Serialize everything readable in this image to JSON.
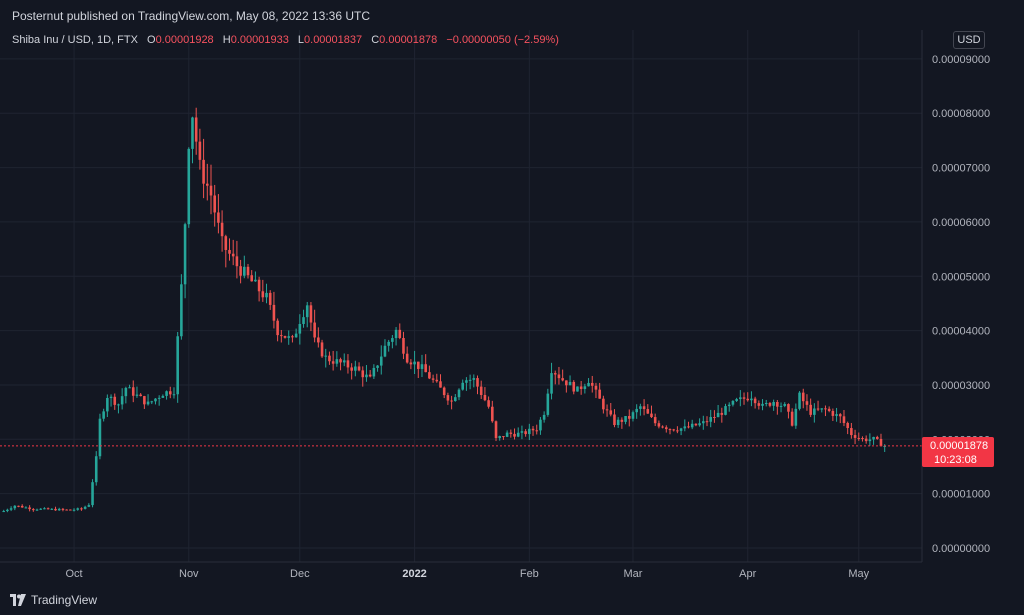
{
  "header": {
    "published": "Posternut published on TradingView.com, May 08, 2022 13:36 UTC"
  },
  "legend": {
    "symbol": "Shiba Inu / USD, 1D, FTX",
    "o_label": "O",
    "o_value": "0.00001928",
    "h_label": "H",
    "h_value": "0.00001933",
    "l_label": "L",
    "l_value": "0.00001837",
    "c_label": "C",
    "c_value": "0.00001878",
    "change": "−0.00000050 (−2.59%)"
  },
  "currency_button": "USD",
  "price_tag": {
    "price": "0.00001878",
    "countdown": "10:23:08"
  },
  "footer": {
    "brand": "TradingView"
  },
  "colors": {
    "background": "#131722",
    "up": "#26a69a",
    "down": "#ef5350",
    "grid": "#1f2431"
  },
  "chart_data": {
    "type": "candlestick",
    "y_ticks": [
      "0.00009000",
      "0.00008000",
      "0.00007000",
      "0.00006000",
      "0.00005000",
      "0.00004000",
      "0.00003000",
      "0.00002000",
      "0.00001000",
      "0.00000000"
    ],
    "y_range": [
      0,
      9.2e-05
    ],
    "x_ticks": [
      {
        "label": "Oct",
        "date": "2021-10-01",
        "year": false
      },
      {
        "label": "Nov",
        "date": "2021-11-01",
        "year": false
      },
      {
        "label": "Dec",
        "date": "2021-12-01",
        "year": false
      },
      {
        "label": "2022",
        "date": "2022-01-01",
        "year": true
      },
      {
        "label": "Feb",
        "date": "2022-02-01",
        "year": false
      },
      {
        "label": "Mar",
        "date": "2022-03-01",
        "year": false
      },
      {
        "label": "Apr",
        "date": "2022-04-01",
        "year": false
      },
      {
        "label": "May",
        "date": "2022-05-01",
        "year": false
      }
    ],
    "x_range": [
      "2021-09-11",
      "2022-05-17"
    ],
    "last_close": 1.878e-05,
    "close_path": [
      [
        "2021-09-12",
        6.8e-06
      ],
      [
        "2021-09-15",
        7.8e-06
      ],
      [
        "2021-09-20",
        7.2e-06
      ],
      [
        "2021-09-30",
        7e-06
      ],
      [
        "2021-10-03",
        7.2e-06
      ],
      [
        "2021-10-05",
        8e-06
      ],
      [
        "2021-10-07",
        1.65e-05
      ],
      [
        "2021-10-08",
        2.35e-05
      ],
      [
        "2021-10-10",
        2.8e-05
      ],
      [
        "2021-10-13",
        2.65e-05
      ],
      [
        "2021-10-15",
        2.95e-05
      ],
      [
        "2021-10-19",
        2.75e-05
      ],
      [
        "2021-10-21",
        2.65e-05
      ],
      [
        "2021-10-25",
        2.85e-05
      ],
      [
        "2021-10-28",
        2.9e-05
      ],
      [
        "2021-10-30",
        4.8e-05
      ],
      [
        "2021-10-31",
        6e-05
      ],
      [
        "2021-11-01",
        7.5e-05
      ],
      [
        "2021-11-02",
        8e-05
      ],
      [
        "2021-11-04",
        7e-05
      ],
      [
        "2021-11-07",
        6.5e-05
      ],
      [
        "2021-11-10",
        5.6e-05
      ],
      [
        "2021-11-14",
        5.2e-05
      ],
      [
        "2021-11-18",
        4.9e-05
      ],
      [
        "2021-11-22",
        4.6e-05
      ],
      [
        "2021-11-25",
        4e-05
      ],
      [
        "2021-11-29",
        3.8e-05
      ],
      [
        "2021-12-01",
        4.2e-05
      ],
      [
        "2021-12-03",
        4.5e-05
      ],
      [
        "2021-12-05",
        3.8e-05
      ],
      [
        "2021-12-08",
        3.5e-05
      ],
      [
        "2021-12-12",
        3.4e-05
      ],
      [
        "2021-12-16",
        3.3e-05
      ],
      [
        "2021-12-20",
        3.1e-05
      ],
      [
        "2021-12-24",
        3.7e-05
      ],
      [
        "2021-12-27",
        4e-05
      ],
      [
        "2021-12-30",
        3.5e-05
      ],
      [
        "2022-01-03",
        3.3e-05
      ],
      [
        "2022-01-07",
        3e-05
      ],
      [
        "2022-01-11",
        2.7e-05
      ],
      [
        "2022-01-14",
        3.1e-05
      ],
      [
        "2022-01-17",
        3.1e-05
      ],
      [
        "2022-01-21",
        2.6e-05
      ],
      [
        "2022-01-23",
        2e-05
      ],
      [
        "2022-01-26",
        2.1e-05
      ],
      [
        "2022-01-30",
        2.1e-05
      ],
      [
        "2022-02-03",
        2.2e-05
      ],
      [
        "2022-02-05",
        2.5e-05
      ],
      [
        "2022-02-07",
        3.3e-05
      ],
      [
        "2022-02-10",
        3.1e-05
      ],
      [
        "2022-02-14",
        2.9e-05
      ],
      [
        "2022-02-17",
        3.1e-05
      ],
      [
        "2022-02-21",
        2.6e-05
      ],
      [
        "2022-02-24",
        2.3e-05
      ],
      [
        "2022-02-28",
        2.4e-05
      ],
      [
        "2022-03-03",
        2.6e-05
      ],
      [
        "2022-03-07",
        2.3e-05
      ],
      [
        "2022-03-11",
        2.2e-05
      ],
      [
        "2022-03-15",
        2.2e-05
      ],
      [
        "2022-03-20",
        2.3e-05
      ],
      [
        "2022-03-25",
        2.5e-05
      ],
      [
        "2022-03-29",
        2.7e-05
      ],
      [
        "2022-04-02",
        2.8e-05
      ],
      [
        "2022-04-05",
        2.6e-05
      ],
      [
        "2022-04-08",
        2.7e-05
      ],
      [
        "2022-04-11",
        2.6e-05
      ],
      [
        "2022-04-13",
        2.3e-05
      ],
      [
        "2022-04-15",
        2.8e-05
      ],
      [
        "2022-04-18",
        2.5e-05
      ],
      [
        "2022-04-22",
        2.55e-05
      ],
      [
        "2022-04-26",
        2.4e-05
      ],
      [
        "2022-04-29",
        2.1e-05
      ],
      [
        "2022-05-02",
        2e-05
      ],
      [
        "2022-05-05",
        2e-05
      ],
      [
        "2022-05-08",
        1.88e-05
      ]
    ]
  }
}
